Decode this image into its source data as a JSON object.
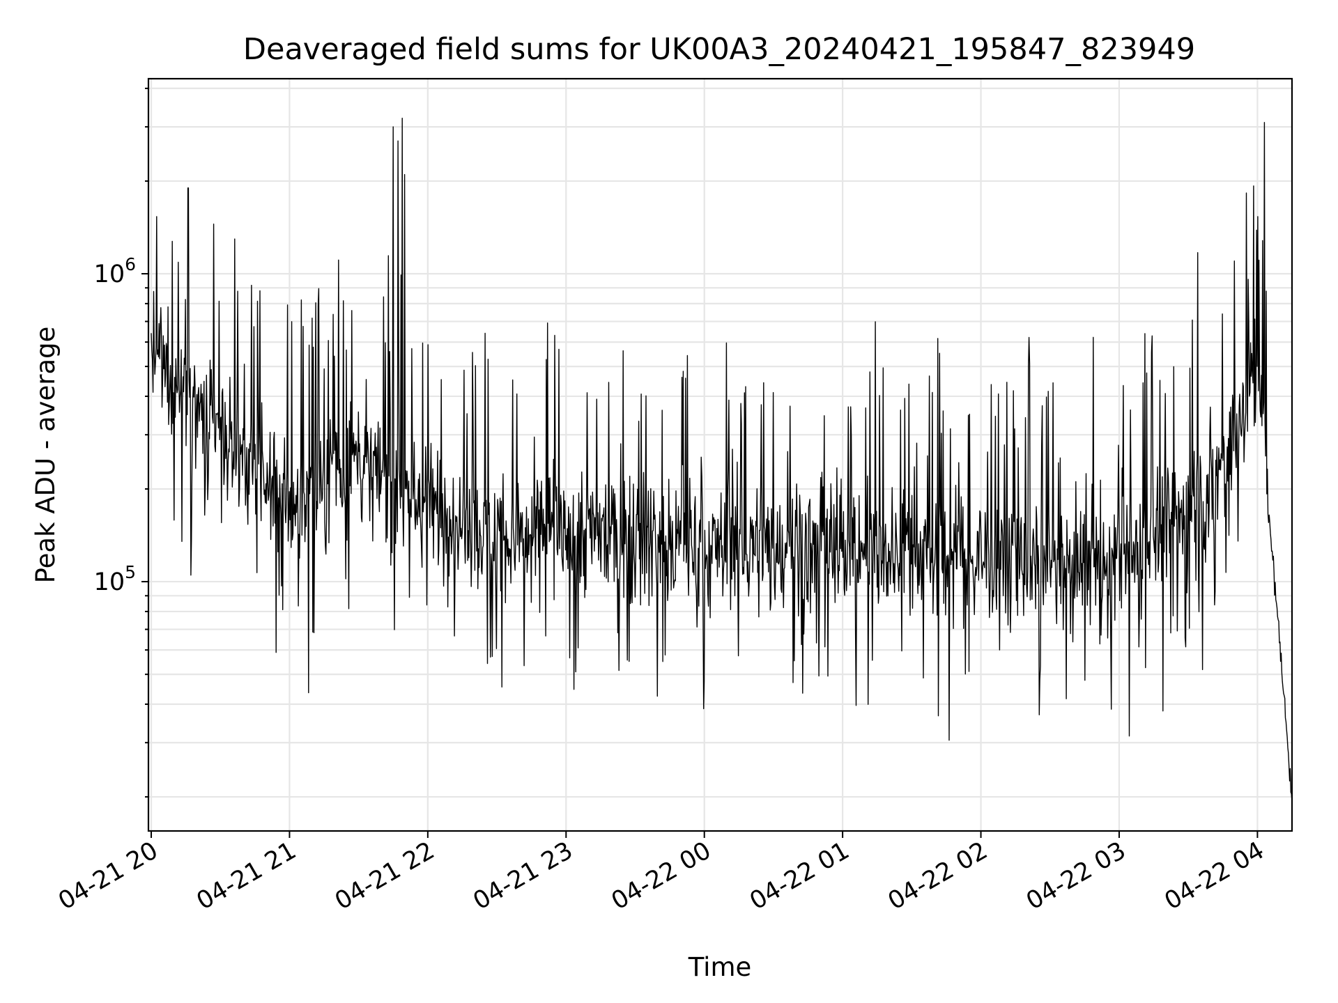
{
  "chart_data": {
    "type": "line",
    "title": "Deaveraged field sums for UK00A3_20240421_195847_823949",
    "xlabel": "Time",
    "ylabel": "Peak ADU - average",
    "x_range": [
      "2024-04-21T19:58:47",
      "2024-04-22T04:15:00"
    ],
    "y_range": [
      15500,
      4300000
    ],
    "y_scale": "log",
    "grid": true,
    "x_ticks": [
      "04-21 20",
      "04-21 21",
      "04-21 22",
      "04-21 23",
      "04-22 00",
      "04-22 01",
      "04-22 02",
      "04-22 03",
      "04-22 04"
    ],
    "x_tick_values": [
      "2024-04-21T20:00:00",
      "2024-04-21T21:00:00",
      "2024-04-21T22:00:00",
      "2024-04-21T23:00:00",
      "2024-04-22T00:00:00",
      "2024-04-22T01:00:00",
      "2024-04-22T02:00:00",
      "2024-04-22T03:00:00",
      "2024-04-22T04:00:00"
    ],
    "y_ticks": [
      {
        "value": 1000000,
        "base": "10",
        "exp": "6"
      },
      {
        "value": 100000,
        "base": "10",
        "exp": "5"
      }
    ],
    "series_color": "#000000",
    "envelope_samples": [
      {
        "t": "2024-04-21T20:00:00",
        "value": 550000
      },
      {
        "t": "2024-04-21T20:30:00",
        "value": 300000
      },
      {
        "t": "2024-04-21T21:00:00",
        "value": 180000
      },
      {
        "t": "2024-04-21T21:30:00",
        "value": 250000
      },
      {
        "t": "2024-04-21T22:00:00",
        "value": 180000
      },
      {
        "t": "2024-04-21T22:30:00",
        "value": 140000
      },
      {
        "t": "2024-04-21T23:00:00",
        "value": 150000
      },
      {
        "t": "2024-04-22T00:00:00",
        "value": 130000
      },
      {
        "t": "2024-04-22T01:00:00",
        "value": 130000
      },
      {
        "t": "2024-04-22T02:00:00",
        "value": 120000
      },
      {
        "t": "2024-04-22T03:00:00",
        "value": 110000
      },
      {
        "t": "2024-04-22T03:40:00",
        "value": 200000
      },
      {
        "t": "2024-04-22T04:00:00",
        "value": 500000
      },
      {
        "t": "2024-04-22T04:15:00",
        "value": 20000
      }
    ],
    "spikes": [
      {
        "t": "2024-04-21T20:16:00",
        "value": 1900000
      },
      {
        "t": "2024-04-21T20:27:00",
        "value": 1450000
      },
      {
        "t": "2024-04-21T21:45:00",
        "value": 3000000
      },
      {
        "t": "2024-04-21T21:47:00",
        "value": 2700000
      },
      {
        "t": "2024-04-21T21:49:00",
        "value": 3200000
      },
      {
        "t": "2024-04-21T21:50:00",
        "value": 2100000
      },
      {
        "t": "2024-04-22T03:50:00",
        "value": 1100000
      },
      {
        "t": "2024-04-22T04:03:00",
        "value": 3100000
      }
    ],
    "minimum": {
      "t": "2024-04-22T04:15:00",
      "value": 20000
    }
  }
}
